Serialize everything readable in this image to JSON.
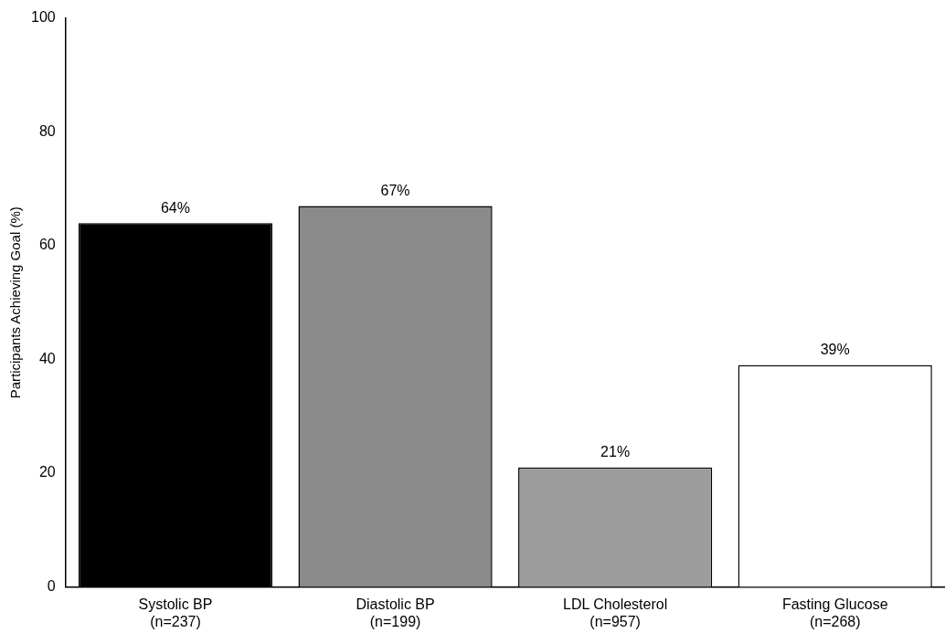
{
  "chart_data": {
    "type": "bar",
    "ylabel": "Participants Achieving Goal (%)",
    "categories": [
      "Systolic BP\n(n=237)",
      "Diastolic BP\n(n=199)",
      "LDL Cholesterol\n(n=957)",
      "Fasting Glucose\n(n=268)"
    ],
    "values": [
      64,
      67,
      21,
      39
    ],
    "colors": [
      "#000000",
      "#8a8a8a",
      "#9c9c9c",
      "#ffffff"
    ],
    "value_labels": [
      "64%",
      "67%",
      "21%",
      "39%"
    ],
    "ylim": [
      0,
      100
    ],
    "yticks": [
      0,
      20,
      40,
      60,
      80,
      100
    ],
    "grid": false,
    "legend": false
  }
}
